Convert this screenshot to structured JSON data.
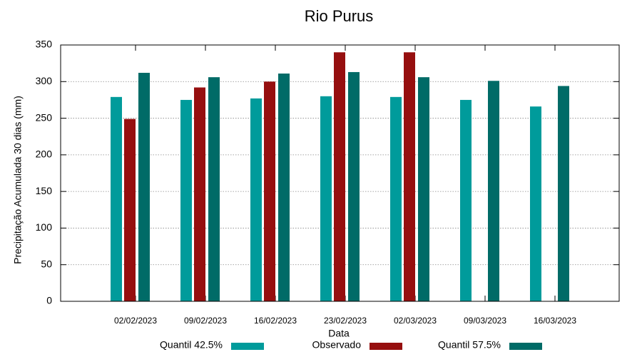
{
  "chart_data": {
    "type": "bar",
    "title": "Rio Purus",
    "x_label": "Data",
    "y_label": "Precipitação Acumulada 30 dias (mm)",
    "categories": [
      "02/02/2023",
      "09/02/2023",
      "16/02/2023",
      "23/02/2023",
      "02/03/2023",
      "09/03/2023",
      "16/03/2023"
    ],
    "series": [
      {
        "name": "Quantil 42.5%",
        "color": "#009b9b",
        "values": [
          279,
          275,
          277,
          280,
          279,
          275,
          266
        ]
      },
      {
        "name": "Observado",
        "color": "#960f0f",
        "values": [
          249,
          292,
          300,
          340,
          340,
          null,
          null
        ]
      },
      {
        "name": "Quantil 57.5%",
        "color": "#006b67",
        "values": [
          312,
          306,
          311,
          313,
          306,
          301,
          294
        ]
      }
    ],
    "ylim": [
      0,
      350
    ],
    "yticks": [
      0,
      50,
      100,
      150,
      200,
      250,
      300,
      350
    ],
    "grid": true,
    "legend": "bottom"
  }
}
